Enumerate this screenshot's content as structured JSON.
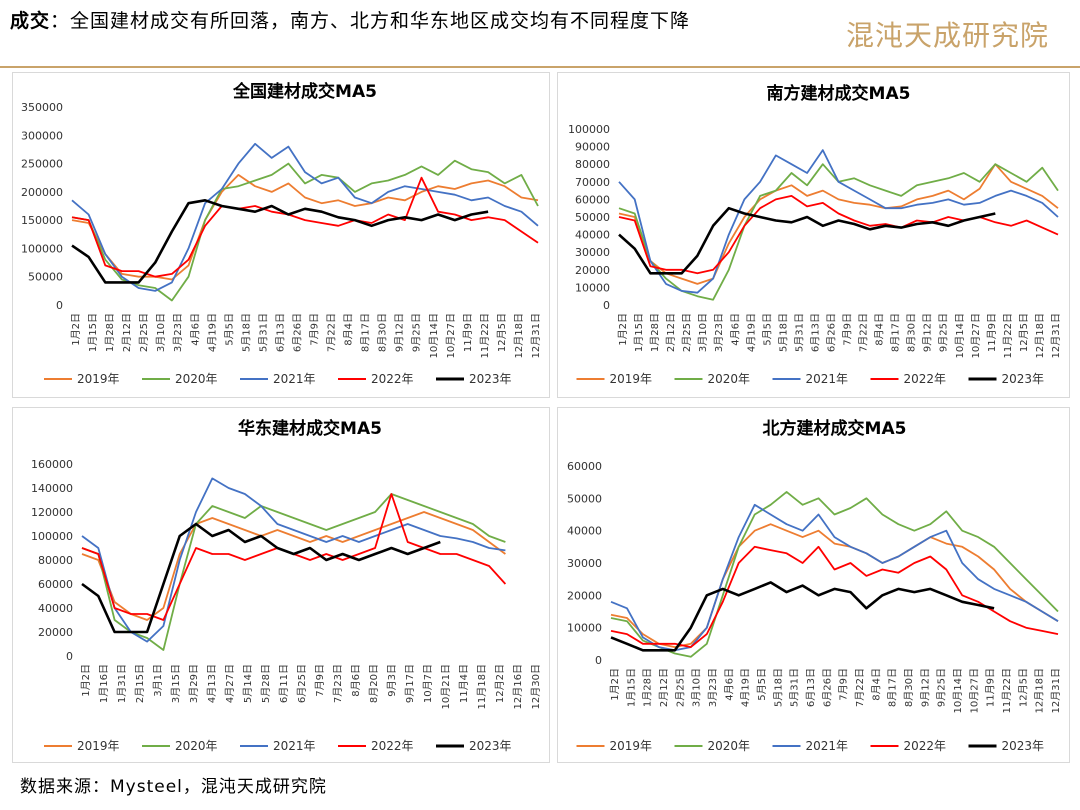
{
  "header": {
    "headline_bold": "成交",
    "headline_text": "：全国建材成交有所回落，南方、北方和华东地区成交均有不同程度下降",
    "logo_text": "混沌天成研究院"
  },
  "footer": {
    "source": "数据来源：Mysteel，混沌天成研究院"
  },
  "chart_data": [
    {
      "type": "line",
      "title": "全国建材成交MA5",
      "ylim": [
        0,
        350000
      ],
      "yticks": [
        0,
        50000,
        100000,
        150000,
        200000,
        250000,
        300000,
        350000
      ],
      "x_tick_labels": [
        "1月2日",
        "1月15日",
        "1月28日",
        "2月12日",
        "2月25日",
        "3月10日",
        "3月23日",
        "4月6日",
        "4月19日",
        "5月5日",
        "5月18日",
        "5月31日",
        "6月13日",
        "6月26日",
        "7月9日",
        "7月22日",
        "8月4日",
        "8月17日",
        "8月30日",
        "9月12日",
        "9月25日",
        "10月14日",
        "10月27日",
        "11月9日",
        "11月22日",
        "12月5日",
        "12月18日",
        "12月31日"
      ],
      "legend": "bottom",
      "series": [
        {
          "name": "2019年",
          "color": "#ed7d31",
          "values": [
            150000,
            145000,
            90000,
            55000,
            50000,
            50000,
            45000,
            70000,
            150000,
            200000,
            230000,
            210000,
            200000,
            215000,
            190000,
            180000,
            185000,
            175000,
            180000,
            190000,
            185000,
            200000,
            210000,
            205000,
            215000,
            220000,
            210000,
            190000,
            185000
          ]
        },
        {
          "name": "2020年",
          "color": "#70ad47",
          "values": [
            155000,
            150000,
            80000,
            45000,
            35000,
            30000,
            8000,
            50000,
            150000,
            205000,
            210000,
            220000,
            230000,
            250000,
            215000,
            230000,
            225000,
            200000,
            215000,
            220000,
            230000,
            245000,
            230000,
            255000,
            240000,
            235000,
            215000,
            230000,
            175000
          ]
        },
        {
          "name": "2021年",
          "color": "#4472c4",
          "values": [
            185000,
            160000,
            90000,
            50000,
            30000,
            25000,
            40000,
            100000,
            180000,
            205000,
            250000,
            285000,
            260000,
            280000,
            235000,
            215000,
            225000,
            190000,
            180000,
            200000,
            210000,
            205000,
            200000,
            195000,
            185000,
            190000,
            175000,
            165000,
            140000
          ]
        },
        {
          "name": "2022年",
          "color": "#ff0000",
          "values": [
            155000,
            150000,
            70000,
            60000,
            60000,
            50000,
            55000,
            80000,
            140000,
            175000,
            170000,
            175000,
            165000,
            160000,
            150000,
            145000,
            140000,
            150000,
            145000,
            160000,
            150000,
            225000,
            165000,
            160000,
            150000,
            155000,
            150000,
            130000,
            110000
          ]
        },
        {
          "name": "2023年",
          "color": "#000000",
          "values": [
            105000,
            85000,
            40000,
            40000,
            40000,
            75000,
            130000,
            180000,
            185000,
            175000,
            170000,
            165000,
            175000,
            160000,
            170000,
            165000,
            155000,
            150000,
            140000,
            150000,
            155000,
            150000,
            160000,
            150000,
            160000,
            165000
          ]
        }
      ]
    },
    {
      "type": "line",
      "title": "南方建材成交MA5",
      "ylim": [
        0,
        100000
      ],
      "yticks": [
        0,
        10000,
        20000,
        30000,
        40000,
        50000,
        60000,
        70000,
        80000,
        90000,
        100000
      ],
      "x_tick_labels": [
        "1月2日",
        "1月15日",
        "1月28日",
        "2月12日",
        "2月25日",
        "3月10日",
        "3月23日",
        "4月6日",
        "4月19日",
        "5月5日",
        "5月18日",
        "5月31日",
        "6月13日",
        "6月26日",
        "7月9日",
        "7月22日",
        "8月4日",
        "8月17日",
        "8月30日",
        "9月12日",
        "9月25日",
        "10月14日",
        "10月27日",
        "11月9日",
        "11月22日",
        "12月5日",
        "12月18日",
        "12月31日"
      ],
      "legend": "bottom",
      "series": [
        {
          "name": "2019年",
          "color": "#ed7d31",
          "values": [
            52000,
            50000,
            25000,
            18000,
            15000,
            12000,
            15000,
            35000,
            50000,
            60000,
            65000,
            68000,
            62000,
            65000,
            60000,
            58000,
            57000,
            55000,
            56000,
            60000,
            62000,
            65000,
            60000,
            66000,
            80000,
            70000,
            66000,
            62000,
            55000
          ]
        },
        {
          "name": "2020年",
          "color": "#70ad47",
          "values": [
            55000,
            52000,
            25000,
            15000,
            8000,
            5000,
            3000,
            20000,
            45000,
            62000,
            65000,
            75000,
            68000,
            80000,
            70000,
            72000,
            68000,
            65000,
            62000,
            68000,
            70000,
            72000,
            75000,
            70000,
            80000,
            75000,
            70000,
            78000,
            65000
          ]
        },
        {
          "name": "2021年",
          "color": "#4472c4",
          "values": [
            70000,
            60000,
            25000,
            12000,
            8000,
            7000,
            15000,
            40000,
            60000,
            70000,
            85000,
            80000,
            75000,
            88000,
            70000,
            65000,
            60000,
            55000,
            55000,
            57000,
            58000,
            60000,
            57000,
            58000,
            62000,
            65000,
            62000,
            58000,
            50000
          ]
        },
        {
          "name": "2022年",
          "color": "#ff0000",
          "values": [
            50000,
            48000,
            22000,
            20000,
            20000,
            18000,
            20000,
            30000,
            45000,
            55000,
            60000,
            62000,
            56000,
            58000,
            52000,
            48000,
            45000,
            46000,
            44000,
            48000,
            47000,
            50000,
            48000,
            50000,
            47000,
            45000,
            48000,
            44000,
            40000
          ]
        },
        {
          "name": "2023年",
          "color": "#000000",
          "values": [
            40000,
            32000,
            18000,
            18000,
            18000,
            28000,
            45000,
            55000,
            52000,
            50000,
            48000,
            47000,
            50000,
            45000,
            48000,
            46000,
            43000,
            45000,
            44000,
            46000,
            47000,
            45000,
            48000,
            50000,
            52000
          ]
        }
      ]
    },
    {
      "type": "line",
      "title": "华东建材成交MA5",
      "ylim": [
        0,
        160000
      ],
      "yticks": [
        0,
        20000,
        40000,
        60000,
        80000,
        100000,
        120000,
        140000,
        160000
      ],
      "x_tick_labels": [
        "1月2日",
        "1月16日",
        "1月31日",
        "2月15日",
        "3月1日",
        "3月15日",
        "3月29日",
        "4月13日",
        "4月27日",
        "5月14日",
        "5月28日",
        "6月11日",
        "6月25日",
        "7月9日",
        "7月23日",
        "8月6日",
        "8月20日",
        "9月3日",
        "9月17日",
        "10月7日",
        "10月21日",
        "11月4日",
        "11月18日",
        "12月2日",
        "12月16日",
        "12月30日"
      ],
      "legend": "bottom",
      "series": [
        {
          "name": "2019年",
          "color": "#ed7d31",
          "values": [
            85000,
            80000,
            45000,
            35000,
            30000,
            40000,
            85000,
            110000,
            115000,
            110000,
            105000,
            100000,
            105000,
            100000,
            95000,
            100000,
            95000,
            100000,
            105000,
            110000,
            115000,
            120000,
            115000,
            110000,
            105000,
            95000,
            85000
          ]
        },
        {
          "name": "2020年",
          "color": "#70ad47",
          "values": [
            90000,
            85000,
            30000,
            20000,
            15000,
            5000,
            60000,
            110000,
            125000,
            120000,
            115000,
            125000,
            120000,
            115000,
            110000,
            105000,
            110000,
            115000,
            120000,
            135000,
            130000,
            125000,
            120000,
            115000,
            110000,
            100000,
            95000
          ]
        },
        {
          "name": "2021年",
          "color": "#4472c4",
          "values": [
            100000,
            90000,
            40000,
            20000,
            12000,
            25000,
            80000,
            120000,
            148000,
            140000,
            135000,
            125000,
            110000,
            105000,
            100000,
            95000,
            100000,
            95000,
            100000,
            105000,
            110000,
            105000,
            100000,
            98000,
            95000,
            90000,
            88000
          ]
        },
        {
          "name": "2022年",
          "color": "#ff0000",
          "values": [
            90000,
            85000,
            40000,
            35000,
            35000,
            30000,
            60000,
            90000,
            85000,
            85000,
            80000,
            85000,
            90000,
            85000,
            80000,
            85000,
            80000,
            85000,
            90000,
            135000,
            95000,
            90000,
            85000,
            85000,
            80000,
            75000,
            60000
          ]
        },
        {
          "name": "2023年",
          "color": "#000000",
          "values": [
            60000,
            50000,
            20000,
            20000,
            20000,
            60000,
            100000,
            110000,
            100000,
            105000,
            95000,
            100000,
            90000,
            85000,
            90000,
            80000,
            85000,
            80000,
            85000,
            90000,
            85000,
            90000,
            95000
          ]
        }
      ]
    },
    {
      "type": "line",
      "title": "北方建材成交MA5",
      "ylim": [
        0,
        60000
      ],
      "yticks": [
        0,
        10000,
        20000,
        30000,
        40000,
        50000,
        60000
      ],
      "x_tick_labels": [
        "1月2日",
        "1月15日",
        "1月28日",
        "2月12日",
        "2月25日",
        "3月10日",
        "3月23日",
        "4月6日",
        "4月19日",
        "5月5日",
        "5月18日",
        "5月31日",
        "6月13日",
        "6月26日",
        "7月9日",
        "7月22日",
        "8月4日",
        "8月17日",
        "8月30日",
        "9月12日",
        "9月25日",
        "10月14日",
        "10月27日",
        "11月9日",
        "11月22日",
        "12月5日",
        "12月18日",
        "12月31日"
      ],
      "legend": "bottom",
      "series": [
        {
          "name": "2019年",
          "color": "#ed7d31",
          "values": [
            14000,
            13000,
            8000,
            5000,
            4000,
            5000,
            10000,
            25000,
            35000,
            40000,
            42000,
            40000,
            38000,
            40000,
            36000,
            35000,
            33000,
            30000,
            32000,
            35000,
            38000,
            36000,
            35000,
            32000,
            28000,
            22000,
            18000,
            15000,
            12000
          ]
        },
        {
          "name": "2020年",
          "color": "#70ad47",
          "values": [
            13000,
            12000,
            6000,
            4000,
            2000,
            1000,
            5000,
            20000,
            35000,
            45000,
            48000,
            52000,
            48000,
            50000,
            45000,
            47000,
            50000,
            45000,
            42000,
            40000,
            42000,
            46000,
            40000,
            38000,
            35000,
            30000,
            25000,
            20000,
            15000
          ]
        },
        {
          "name": "2021年",
          "color": "#4472c4",
          "values": [
            18000,
            16000,
            7000,
            4000,
            3000,
            4000,
            10000,
            25000,
            38000,
            48000,
            45000,
            42000,
            40000,
            45000,
            38000,
            35000,
            33000,
            30000,
            32000,
            35000,
            38000,
            40000,
            30000,
            25000,
            22000,
            20000,
            18000,
            15000,
            12000
          ]
        },
        {
          "name": "2022年",
          "color": "#ff0000",
          "values": [
            9000,
            8000,
            5000,
            5000,
            5000,
            4000,
            8000,
            18000,
            30000,
            35000,
            34000,
            33000,
            30000,
            35000,
            28000,
            30000,
            26000,
            28000,
            27000,
            30000,
            32000,
            28000,
            20000,
            18000,
            15000,
            12000,
            10000,
            9000,
            8000
          ]
        },
        {
          "name": "2023年",
          "color": "#000000",
          "values": [
            7000,
            5000,
            3000,
            3000,
            3000,
            10000,
            20000,
            22000,
            20000,
            22000,
            24000,
            21000,
            23000,
            20000,
            22000,
            21000,
            16000,
            20000,
            22000,
            21000,
            22000,
            20000,
            18000,
            17000,
            16000
          ]
        }
      ]
    }
  ]
}
